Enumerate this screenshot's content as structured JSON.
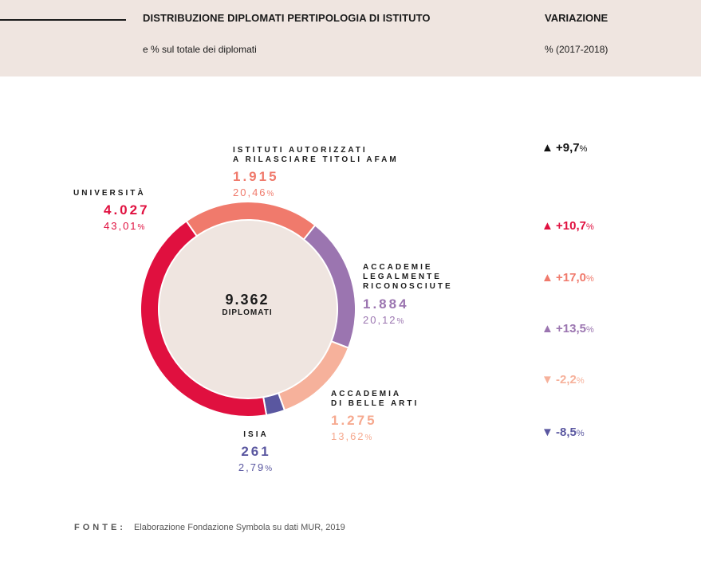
{
  "header": {
    "title": "DISTRIBUZIONE DIPLOMATI PERTIPOLOGIA DI ISTITUTO",
    "subtitle": "e % sul totale dei diplomati",
    "variation_title": "VARIAZIONE",
    "variation_subtitle": "% (2017-2018)"
  },
  "center": {
    "value": "9.362",
    "label": "DIPLOMATI"
  },
  "chart_data": {
    "type": "pie",
    "total": 9362,
    "slices": [
      {
        "key": "universita",
        "name": "UNIVERSITÀ",
        "value": 4027,
        "value_label": "4.027",
        "percent": 43.01,
        "percent_label": "43,01",
        "color": "#e0103f",
        "variation": "+9,7",
        "variation_dir": "up",
        "variation_color": "#111111"
      },
      {
        "key": "afam",
        "name_lines": [
          "ISTITUTI AUTORIZZATI",
          "A RILASCIARE TITOLI AFAM"
        ],
        "value": 1915,
        "value_label": "1.915",
        "percent": 20.46,
        "percent_label": "20,46",
        "color": "#f07a6c",
        "variation": "+10,7",
        "variation_dir": "up",
        "variation_color": "#e0103f"
      },
      {
        "key": "accademie_legalmente",
        "name_lines": [
          "ACCADEMIE",
          "LEGALMENTE",
          "RICONOSCIUTE"
        ],
        "value": 1884,
        "value_label": "1.884",
        "percent": 20.12,
        "percent_label": "20,12",
        "color": "#9b75b0",
        "variation": "+17,0",
        "variation_dir": "up",
        "variation_color": "#f07a6c"
      },
      {
        "key": "belle_arti",
        "name_lines": [
          "ACCADEMIA",
          "DI BELLE ARTI"
        ],
        "value": 1275,
        "value_label": "1.275",
        "percent": 13.62,
        "percent_label": "13,62",
        "color": "#f6b19b",
        "variation": "+13,5",
        "variation_dir": "up",
        "variation_color": "#9b75b0"
      },
      {
        "key": "isia",
        "name": "ISIA",
        "value": 261,
        "value_label": "261",
        "percent": 2.79,
        "percent_label": "2,79",
        "color": "#5a57a0",
        "variation": "-2,2",
        "variation_dir": "down",
        "variation_color": "#f6b19b"
      }
    ],
    "extra_variation": {
      "variation": "-8,5",
      "variation_dir": "down",
      "variation_color": "#5a57a0"
    }
  },
  "source": {
    "label": "FONTE:",
    "text": "Elaborazione Fondazione Symbola su dati MUR, 2019"
  },
  "pct_sign": "%",
  "icons": {
    "up": "triangle-up-icon",
    "down": "triangle-down-icon"
  }
}
